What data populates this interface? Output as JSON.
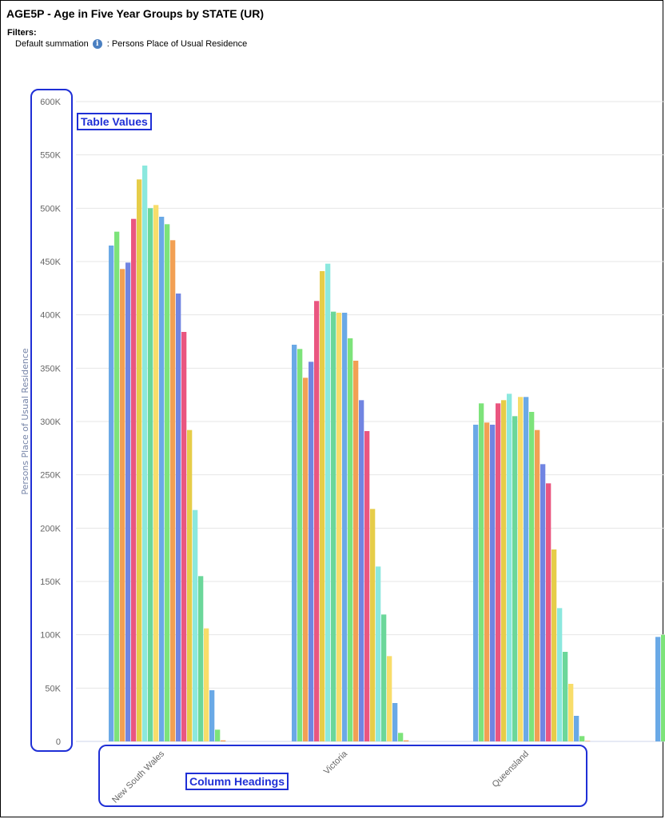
{
  "header": {
    "title": "AGE5P - Age in Five Year Groups by STATE (UR)",
    "filters_label": "Filters:",
    "filter_summation": "Default summation",
    "filter_measure": ": Persons Place of Usual Residence",
    "info_icon": "info-icon"
  },
  "annotations": {
    "table_values": "Table Values",
    "column_headings": "Column Headings"
  },
  "colors": {
    "series": [
      "#6aa9e6",
      "#7de37a",
      "#f2a054",
      "#7185e2",
      "#ea5680",
      "#e6cd49",
      "#8be8de",
      "#6bd79a",
      "#f8dd6a"
    ],
    "gridline": "#e6e6e6",
    "axis_text": "#666666",
    "annotation": "#1f2fd6"
  },
  "chart_data": {
    "type": "bar",
    "ylabel": "Persons Place of Usual Residence",
    "ylim": [
      0,
      600000
    ],
    "yticks": [
      "0",
      "50K",
      "100K",
      "150K",
      "200K",
      "250K",
      "300K",
      "350K",
      "400K",
      "450K",
      "500K",
      "550K",
      "600K"
    ],
    "grid": true,
    "categories": [
      "New South Wales",
      "Victoria",
      "Queensland"
    ],
    "series_count": 21,
    "values": {
      "New South Wales": [
        465000,
        478000,
        443000,
        449000,
        490000,
        527000,
        540000,
        500000,
        503000,
        492000,
        485000,
        470000,
        420000,
        384000,
        292000,
        217000,
        155000,
        106000,
        48000,
        11000,
        1000
      ],
      "Victoria": [
        372000,
        368000,
        341000,
        356000,
        413000,
        441000,
        448000,
        403000,
        402000,
        402000,
        378000,
        357000,
        320000,
        291000,
        218000,
        164000,
        119000,
        80000,
        36000,
        8000,
        1000
      ],
      "Queensland": [
        297000,
        317000,
        299000,
        297000,
        317000,
        320000,
        326000,
        305000,
        323000,
        323000,
        309000,
        292000,
        260000,
        242000,
        180000,
        125000,
        84000,
        54000,
        24000,
        5000,
        500
      ]
    },
    "partial_category_values": [
      98000,
      100000
    ]
  }
}
